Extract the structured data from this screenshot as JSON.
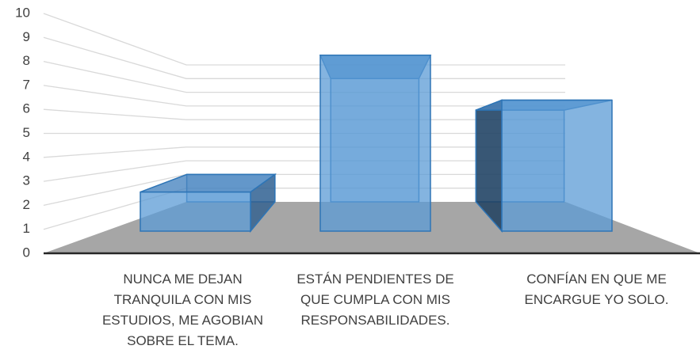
{
  "chart_data": {
    "type": "bar3d",
    "categories": [
      "NUNCA ME DEJAN TRANQUILA CON MIS ESTUDIOS, ME AGOBIAN SOBRE EL TEMA.",
      "ESTÁN PENDIENTES DE QUE CUMPLA CON MIS RESPONSABILIDADES.",
      "CONFÍAN EN QUE ME ENCARGUE YO SOLO."
    ],
    "values": [
      2,
      9,
      6.7
    ],
    "color": "#5b9bd5",
    "ylim": [
      0,
      10
    ],
    "yticks": [
      0,
      1,
      2,
      3,
      4,
      5,
      6,
      7,
      8,
      9,
      10
    ],
    "grid": true
  }
}
